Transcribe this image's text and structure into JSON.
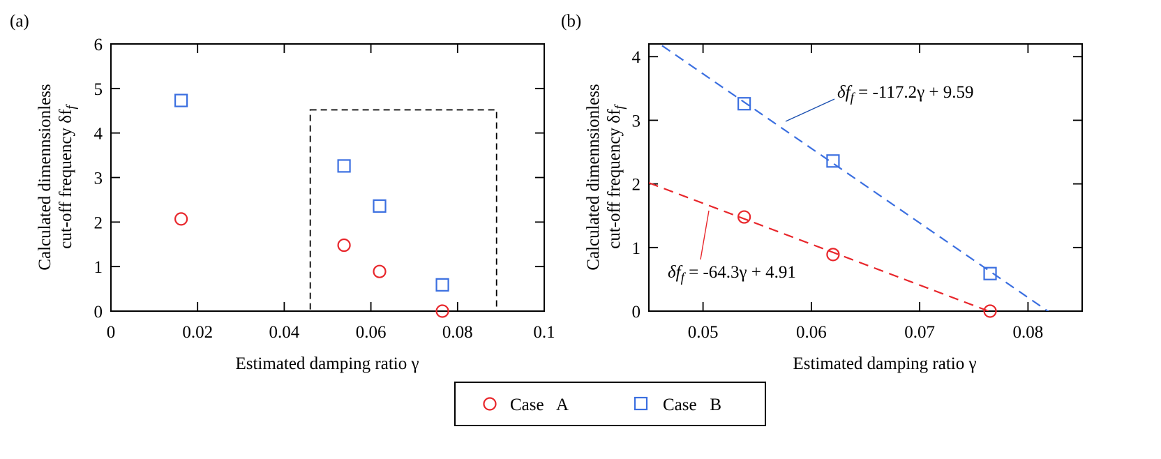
{
  "panels": {
    "a": {
      "label": "(a)"
    },
    "b": {
      "label": "(b)"
    }
  },
  "colors": {
    "case_a": "#e8262b",
    "case_b": "#3b6fe0",
    "frame": "#000000"
  },
  "chart_data": [
    {
      "type": "scatter",
      "panel": "(a)",
      "xlabel": "Estimated damping ratio γ",
      "ylabel_line1": "Calculated dimennsionless",
      "ylabel_line2": "cut-off frequency δf",
      "ylabel_sub": "f",
      "xlim": [
        0,
        0.1
      ],
      "ylim": [
        0,
        6
      ],
      "xticks": [
        0,
        0.02,
        0.04,
        0.06,
        0.08,
        0.1
      ],
      "xtick_labels": [
        "0",
        "0.02",
        "0.04",
        "0.06",
        "0.08",
        "0.1"
      ],
      "yticks": [
        0,
        1,
        2,
        3,
        4,
        5,
        6
      ],
      "ytick_labels": [
        "0",
        "1",
        "2",
        "3",
        "4",
        "5",
        "6"
      ],
      "zoom_box": {
        "x": [
          0.046,
          0.089
        ],
        "y": [
          0,
          4.52
        ]
      },
      "series": [
        {
          "name": "Case   A",
          "marker": "circle",
          "x": [
            0.0162,
            0.0538,
            0.062,
            0.0765
          ],
          "y": [
            2.07,
            1.48,
            0.89,
            0.0
          ]
        },
        {
          "name": "Case   B",
          "marker": "square",
          "x": [
            0.0162,
            0.0538,
            0.062,
            0.0765
          ],
          "y": [
            4.73,
            3.26,
            2.36,
            0.59
          ]
        }
      ]
    },
    {
      "type": "scatter",
      "panel": "(b)",
      "xlabel": "Estimated damping ratio γ",
      "ylabel_line1": "Calculated dimennsionless",
      "ylabel_line2": "cut-off frequency δf",
      "ylabel_sub": "f",
      "xlim": [
        0.045,
        0.085
      ],
      "ylim": [
        0,
        4.2
      ],
      "xticks": [
        0.05,
        0.06,
        0.07,
        0.08
      ],
      "xtick_labels": [
        "0.05",
        "0.06",
        "0.07",
        "0.08"
      ],
      "yticks": [
        0,
        1,
        2,
        3,
        4
      ],
      "ytick_labels": [
        "0",
        "1",
        "2",
        "3",
        "4"
      ],
      "series": [
        {
          "name": "Case   A",
          "marker": "circle",
          "x": [
            0.0538,
            0.062,
            0.0765
          ],
          "y": [
            1.48,
            0.89,
            0.0
          ],
          "fit": {
            "slope": -64.3,
            "intercept": 4.91,
            "label_prefix": "δf",
            "label_sub": "f",
            "label_rest": " = -64.3γ + 4.91"
          }
        },
        {
          "name": "Case   B",
          "marker": "square",
          "x": [
            0.0538,
            0.062,
            0.0765
          ],
          "y": [
            3.26,
            2.36,
            0.59
          ],
          "fit": {
            "slope": -117.2,
            "intercept": 9.59,
            "label_prefix": "δf",
            "label_sub": "f",
            "label_rest": " = -117.2γ + 9.59"
          }
        }
      ]
    }
  ],
  "legend": {
    "items": [
      {
        "label": "Case   A",
        "marker": "circle"
      },
      {
        "label": "Case   B",
        "marker": "square"
      }
    ]
  }
}
